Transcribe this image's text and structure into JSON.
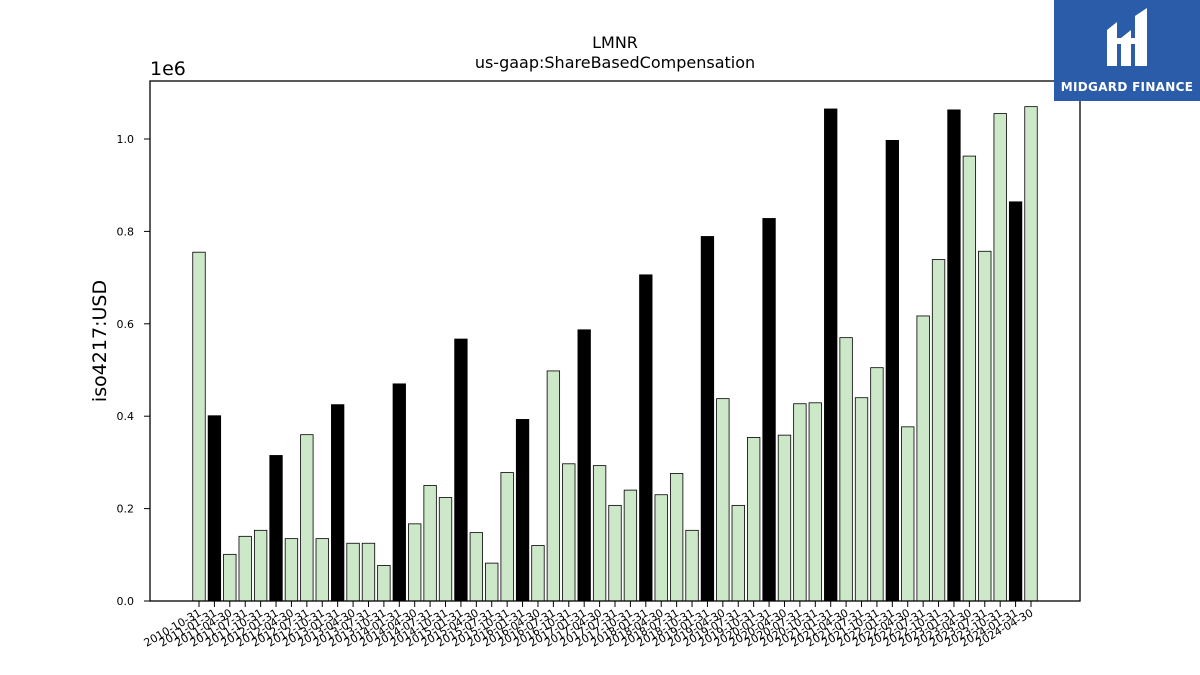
{
  "chart_data": {
    "type": "bar",
    "title": "LMNR",
    "subtitle": "us-gaap:ShareBasedCompensation",
    "ylabel": "iso4217:USD",
    "xlabel": "",
    "y_multiplier_label": "1e6",
    "ylim": [
      0,
      1.12
    ],
    "yticks": [
      "0.0",
      "0.2",
      "0.4",
      "0.6",
      "0.8",
      "1.0"
    ],
    "grid": false,
    "colors": {
      "quarterly": "#cde8c8",
      "annual": "#000000",
      "edge": "#000000"
    },
    "categories": [
      "2010-10-31",
      "2011-01-31",
      "2011-04-30",
      "2011-07-31",
      "2011-10-31",
      "2012-01-31",
      "2012-04-30",
      "2012-07-31",
      "2012-10-31",
      "2013-01-31",
      "2013-04-30",
      "2013-07-31",
      "2013-10-31",
      "2014-01-31",
      "2014-04-30",
      "2014-07-31",
      "2014-10-31",
      "2015-01-31",
      "2015-04-30",
      "2015-07-31",
      "2015-10-31",
      "2016-01-31",
      "2016-04-30",
      "2016-07-31",
      "2016-10-31",
      "2017-01-31",
      "2017-04-30",
      "2017-07-31",
      "2017-10-31",
      "2018-01-31",
      "2018-04-30",
      "2018-07-31",
      "2018-10-31",
      "2019-01-31",
      "2019-04-30",
      "2019-07-31",
      "2019-10-31",
      "2020-01-31",
      "2020-04-30",
      "2020-07-31",
      "2020-10-31",
      "2021-01-31",
      "2021-04-30",
      "2021-07-31",
      "2021-10-31",
      "2022-01-31",
      "2022-04-30",
      "2022-07-31",
      "2022-10-31",
      "2023-01-31",
      "2023-04-30",
      "2023-07-31",
      "2023-10-31",
      "2024-01-31",
      "2024-04-30"
    ],
    "values": [
      0.755,
      0.401,
      0.101,
      0.14,
      0.153,
      0.315,
      0.135,
      0.36,
      0.135,
      0.425,
      0.125,
      0.125,
      0.077,
      0.47,
      0.167,
      0.25,
      0.224,
      0.567,
      0.148,
      0.082,
      0.278,
      0.393,
      0.12,
      0.498,
      0.297,
      0.587,
      0.293,
      0.207,
      0.24,
      0.706,
      0.23,
      0.276,
      0.153,
      0.789,
      0.438,
      0.207,
      0.354,
      0.828,
      0.359,
      0.427,
      0.429,
      1.065,
      0.57,
      0.44,
      0.505,
      0.997,
      0.377,
      0.617,
      0.739,
      1.063,
      0.963,
      0.757,
      1.055,
      0.864,
      1.07
    ],
    "annual_flags": [
      0,
      1,
      0,
      0,
      0,
      1,
      0,
      0,
      0,
      1,
      0,
      0,
      0,
      1,
      0,
      0,
      0,
      1,
      0,
      0,
      0,
      1,
      0,
      0,
      0,
      1,
      0,
      0,
      0,
      1,
      0,
      0,
      0,
      1,
      0,
      0,
      0,
      1,
      0,
      0,
      0,
      1,
      0,
      0,
      0,
      1,
      0,
      0,
      0,
      1,
      0,
      0,
      0,
      1,
      0
    ]
  },
  "logo": {
    "text": "MIDGARD FINANCE",
    "icon": "midgard-logo-icon",
    "background": "#2a5caa"
  }
}
